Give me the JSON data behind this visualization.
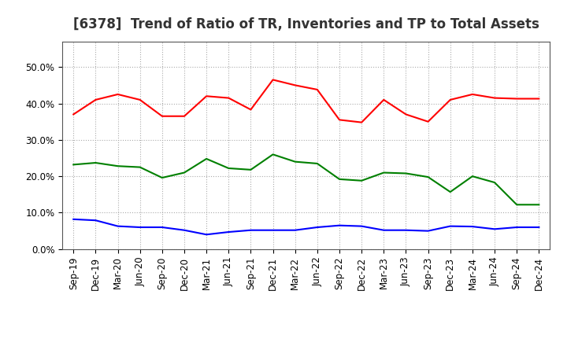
{
  "title": "[6378]  Trend of Ratio of TR, Inventories and TP to Total Assets",
  "x_labels": [
    "Sep-19",
    "Dec-19",
    "Mar-20",
    "Jun-20",
    "Sep-20",
    "Dec-20",
    "Mar-21",
    "Jun-21",
    "Sep-21",
    "Dec-21",
    "Mar-22",
    "Jun-22",
    "Sep-22",
    "Dec-22",
    "Mar-23",
    "Jun-23",
    "Sep-23",
    "Dec-23",
    "Mar-24",
    "Jun-24",
    "Sep-24",
    "Dec-24"
  ],
  "trade_receivables": [
    0.37,
    0.41,
    0.425,
    0.41,
    0.365,
    0.365,
    0.42,
    0.415,
    0.383,
    0.465,
    0.45,
    0.438,
    0.355,
    0.348,
    0.41,
    0.37,
    0.35,
    0.41,
    0.425,
    0.415,
    0.413,
    0.413
  ],
  "inventories": [
    0.082,
    0.079,
    0.063,
    0.06,
    0.06,
    0.052,
    0.04,
    0.047,
    0.052,
    0.052,
    0.052,
    0.06,
    0.065,
    0.063,
    0.052,
    0.052,
    0.05,
    0.063,
    0.062,
    0.055,
    0.06,
    0.06
  ],
  "trade_payables": [
    0.232,
    0.237,
    0.228,
    0.225,
    0.196,
    0.21,
    0.248,
    0.222,
    0.218,
    0.26,
    0.24,
    0.235,
    0.192,
    0.188,
    0.21,
    0.208,
    0.198,
    0.157,
    0.2,
    0.183,
    0.122,
    0.122
  ],
  "tr_color": "#ff0000",
  "inv_color": "#0000ff",
  "tp_color": "#008000",
  "ylim": [
    0,
    0.57
  ],
  "yticks": [
    0.0,
    0.1,
    0.2,
    0.3,
    0.4,
    0.5
  ],
  "background_color": "#ffffff",
  "grid_color": "#aaaaaa",
  "title_fontsize": 12,
  "tick_fontsize": 8.5,
  "legend_fontsize": 9
}
